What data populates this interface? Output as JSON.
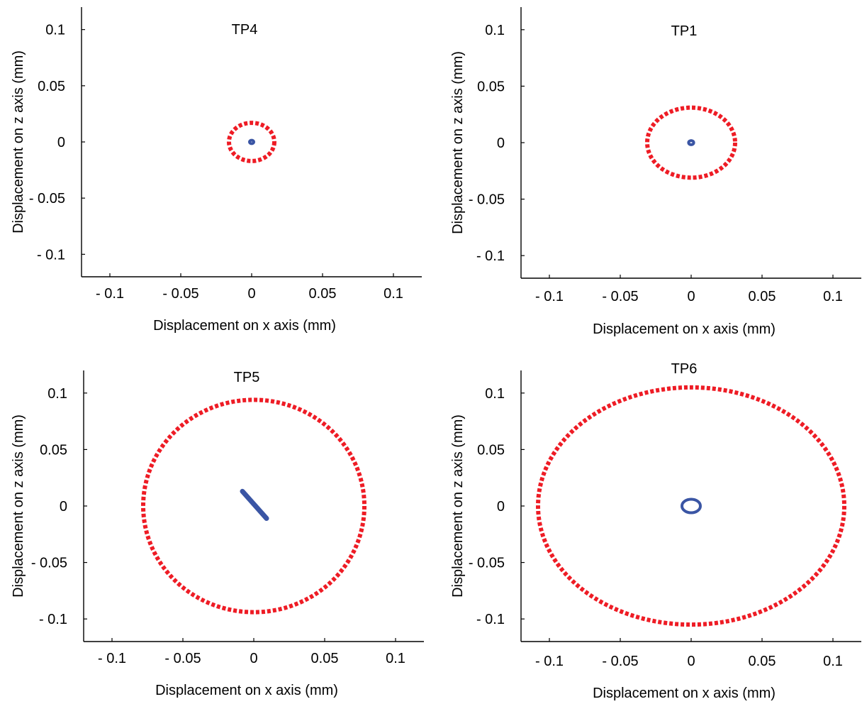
{
  "chart_data": [
    {
      "type": "scatter",
      "title": "TP4",
      "xlabel": "Displacement on x axis (mm)",
      "ylabel": "Displacement on z axis (mm)",
      "xlim": [
        -0.12,
        0.12
      ],
      "ylim": [
        -0.12,
        0.12
      ],
      "xticks": [
        -0.1,
        -0.05,
        0,
        0.05,
        0.1
      ],
      "xtick_labels": [
        "- 0.1",
        "- 0.05",
        "0",
        "0.05",
        "0.1"
      ],
      "yticks": [
        0.1,
        0.05,
        0,
        -0.05,
        -0.1
      ],
      "ytick_labels": [
        "0.1",
        "0.05",
        "0",
        "- 0.05",
        "- 0.1"
      ],
      "grid": false,
      "series": [
        {
          "shape": "ellipse",
          "cx": 0,
          "cy": 0,
          "rx": 0.016,
          "ry": 0.017,
          "color": "#ee1c25",
          "style": "dotted"
        },
        {
          "shape": "ellipse",
          "cx": 0,
          "cy": 0,
          "rx": 0.0015,
          "ry": 0.0015,
          "color": "#3a55a4",
          "style": "solid"
        }
      ]
    },
    {
      "type": "scatter",
      "title": "TP1",
      "xlabel": "Displacement on x axis (mm)",
      "ylabel": "Displacement on z axis (mm)",
      "xlim": [
        -0.12,
        0.12
      ],
      "ylim": [
        -0.12,
        0.12
      ],
      "xticks": [
        -0.1,
        -0.05,
        0,
        0.05,
        0.1
      ],
      "xtick_labels": [
        "- 0.1",
        "- 0.05",
        "0",
        "0.05",
        "0.1"
      ],
      "yticks": [
        0.1,
        0.05,
        0,
        -0.05,
        -0.1
      ],
      "ytick_labels": [
        "0.1",
        "0.05",
        "0",
        "- 0.05",
        "- 0.1"
      ],
      "grid": false,
      "series": [
        {
          "shape": "ellipse",
          "cx": 0,
          "cy": 0,
          "rx": 0.031,
          "ry": 0.031,
          "color": "#ee1c25",
          "style": "dotted"
        },
        {
          "shape": "ellipse",
          "cx": 0,
          "cy": 0,
          "rx": 0.0018,
          "ry": 0.0018,
          "color": "#3a55a4",
          "style": "solid"
        }
      ]
    },
    {
      "type": "scatter",
      "title": "TP5",
      "xlabel": "Displacement on x axis (mm)",
      "ylabel": "Displacement on z axis (mm)",
      "xlim": [
        -0.12,
        0.12
      ],
      "ylim": [
        -0.12,
        0.12
      ],
      "xticks": [
        -0.1,
        -0.05,
        0,
        0.05,
        0.1
      ],
      "xtick_labels": [
        "- 0.1",
        "- 0.05",
        "0",
        "0.05",
        "0.1"
      ],
      "yticks": [
        0.1,
        0.05,
        0,
        -0.05,
        -0.1
      ],
      "ytick_labels": [
        "0.1",
        "0.05",
        "0",
        "- 0.05",
        "- 0.1"
      ],
      "grid": false,
      "series": [
        {
          "shape": "ellipse",
          "cx": 0,
          "cy": 0,
          "rx": 0.078,
          "ry": 0.094,
          "color": "#ee1c25",
          "style": "dotted"
        },
        {
          "shape": "line",
          "x1": -0.008,
          "y1": 0.013,
          "x2": 0.009,
          "y2": -0.011,
          "color": "#3a55a4",
          "style": "solid"
        }
      ]
    },
    {
      "type": "scatter",
      "title": "TP6",
      "xlabel": "Displacement on x axis (mm)",
      "ylabel": "Displacement on z axis (mm)",
      "xlim": [
        -0.12,
        0.12
      ],
      "ylim": [
        -0.12,
        0.12
      ],
      "xticks": [
        -0.1,
        -0.05,
        0,
        0.05,
        0.1
      ],
      "xtick_labels": [
        "- 0.1",
        "- 0.05",
        "0",
        "0.05",
        "0.1"
      ],
      "yticks": [
        0.1,
        0.05,
        0,
        -0.05,
        -0.1
      ],
      "ytick_labels": [
        "0.1",
        "0.05",
        "0",
        "- 0.05",
        "- 0.1"
      ],
      "grid": false,
      "series": [
        {
          "shape": "ellipse",
          "cx": 0,
          "cy": 0,
          "rx": 0.108,
          "ry": 0.105,
          "color": "#ee1c25",
          "style": "dotted"
        },
        {
          "shape": "ellipse",
          "cx": 0,
          "cy": 0,
          "rx": 0.0065,
          "ry": 0.006,
          "color": "#3a55a4",
          "style": "solid"
        }
      ]
    }
  ]
}
